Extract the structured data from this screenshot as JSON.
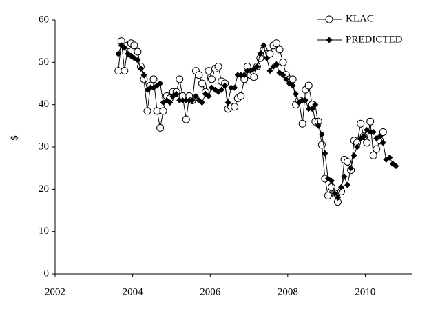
{
  "chart_data": {
    "type": "line",
    "y_label": "$",
    "xlim": [
      2002,
      2011.2
    ],
    "xticks": [
      2002,
      2004,
      2006,
      2008,
      2010
    ],
    "ylim": [
      0,
      60
    ],
    "yticks": [
      0,
      10,
      20,
      30,
      40,
      50,
      60
    ],
    "legend": "top-right",
    "series": [
      {
        "name": "KLAC",
        "color": "#000000",
        "marker": "circle-open",
        "x": [
          2003.63,
          2003.71,
          2003.79,
          2003.88,
          2003.96,
          2004.04,
          2004.13,
          2004.21,
          2004.29,
          2004.38,
          2004.46,
          2004.54,
          2004.63,
          2004.71,
          2004.79,
          2004.88,
          2004.96,
          2005.04,
          2005.13,
          2005.21,
          2005.29,
          2005.38,
          2005.46,
          2005.54,
          2005.63,
          2005.71,
          2005.79,
          2005.88,
          2005.96,
          2006.04,
          2006.13,
          2006.21,
          2006.29,
          2006.38,
          2006.46,
          2006.54,
          2006.63,
          2006.71,
          2006.79,
          2006.88,
          2006.96,
          2007.04,
          2007.13,
          2007.21,
          2007.29,
          2007.38,
          2007.46,
          2007.54,
          2007.63,
          2007.71,
          2007.79,
          2007.88,
          2007.96,
          2008.04,
          2008.13,
          2008.21,
          2008.29,
          2008.38,
          2008.46,
          2008.54,
          2008.63,
          2008.71,
          2008.79,
          2008.88,
          2008.96,
          2009.04,
          2009.13,
          2009.21,
          2009.29,
          2009.38,
          2009.46,
          2009.54,
          2009.63,
          2009.71,
          2009.79,
          2009.88,
          2009.96,
          2010.04,
          2010.13,
          2010.21,
          2010.29,
          2010.38,
          2010.46
        ],
        "values": [
          48,
          55,
          48,
          54,
          54.5,
          54,
          52.5,
          49,
          46,
          38.5,
          44.5,
          46,
          38.5,
          34.5,
          38.5,
          42,
          41.5,
          43,
          43,
          46,
          42,
          36.5,
          42,
          41,
          48,
          47,
          45,
          43,
          48,
          46,
          48.5,
          49,
          45.5,
          45,
          39,
          39.5,
          39.5,
          41.5,
          42,
          46,
          49,
          47,
          46.5,
          49,
          51,
          53,
          52,
          52,
          54,
          54.5,
          53,
          50,
          47,
          46,
          46,
          40,
          41,
          35.5,
          43.5,
          44.5,
          40,
          36,
          36,
          30.5,
          22.5,
          18.5,
          20.5,
          19,
          17,
          19.5,
          27,
          26.5,
          24.5,
          31.5,
          31,
          35.5,
          32.5,
          31,
          36,
          28,
          29.5,
          31.5,
          33.5
        ]
      },
      {
        "name": "PREDICTED",
        "color": "#000000",
        "marker": "diamond",
        "x": [
          2003.63,
          2003.71,
          2003.79,
          2003.88,
          2003.96,
          2004.04,
          2004.13,
          2004.21,
          2004.29,
          2004.38,
          2004.46,
          2004.54,
          2004.63,
          2004.71,
          2004.79,
          2004.88,
          2004.96,
          2005.04,
          2005.13,
          2005.21,
          2005.29,
          2005.38,
          2005.46,
          2005.54,
          2005.63,
          2005.71,
          2005.79,
          2005.88,
          2005.96,
          2006.04,
          2006.13,
          2006.21,
          2006.29,
          2006.38,
          2006.46,
          2006.54,
          2006.63,
          2006.71,
          2006.79,
          2006.88,
          2006.96,
          2007.04,
          2007.13,
          2007.21,
          2007.29,
          2007.38,
          2007.46,
          2007.54,
          2007.63,
          2007.71,
          2007.79,
          2007.88,
          2007.96,
          2008.04,
          2008.13,
          2008.21,
          2008.29,
          2008.38,
          2008.46,
          2008.54,
          2008.63,
          2008.71,
          2008.79,
          2008.88,
          2008.96,
          2009.04,
          2009.13,
          2009.21,
          2009.29,
          2009.38,
          2009.46,
          2009.54,
          2009.63,
          2009.71,
          2009.79,
          2009.88,
          2009.96,
          2010.04,
          2010.13,
          2010.21,
          2010.29,
          2010.38,
          2010.46,
          2010.54,
          2010.63,
          2010.71,
          2010.79
        ],
        "values": [
          52,
          54,
          53.5,
          52,
          51.5,
          51,
          50.5,
          48.5,
          47,
          43.5,
          44,
          44,
          44.5,
          45,
          40.5,
          41,
          40.5,
          42,
          42.5,
          41,
          41,
          41,
          41,
          41,
          42,
          41,
          40.5,
          42.5,
          42,
          44,
          43.5,
          43,
          43.5,
          44.5,
          40.5,
          44,
          44,
          47,
          47,
          47,
          48,
          48,
          48.5,
          49,
          52,
          54,
          51,
          48,
          49,
          49.5,
          47.5,
          47,
          46,
          45,
          44.5,
          42.5,
          40.5,
          41,
          41,
          39,
          39,
          40,
          35,
          33,
          28.5,
          22.5,
          22,
          19,
          18,
          20.5,
          23,
          21,
          25,
          28,
          30,
          32,
          32.5,
          34,
          33.5,
          33.5,
          32,
          32.5,
          31,
          27,
          27.5,
          26,
          25.5
        ]
      }
    ]
  }
}
